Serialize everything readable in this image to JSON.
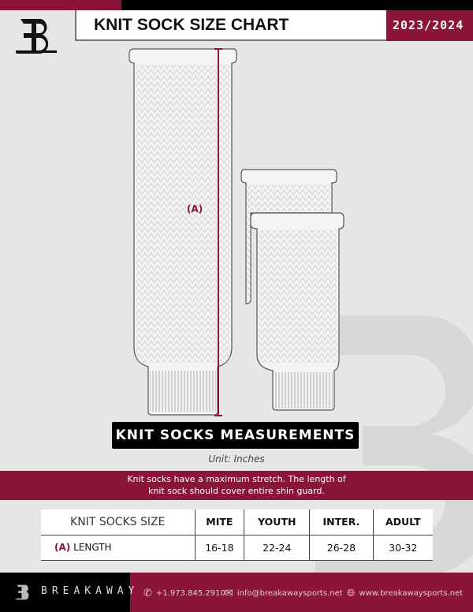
{
  "header": {
    "title": "KNIT SOCK SIZE CHART",
    "season": "2023/2024"
  },
  "diagram": {
    "measure_marker": "(A)"
  },
  "label": "KNIT SOCKS MEASUREMENTS",
  "unit": "Unit: Inches",
  "note": "Knit socks have a maximum stretch. The length of knit sock should cover entire shin guard.",
  "table": {
    "header": [
      "KNIT SOCKS SIZE",
      "MITE",
      "YOUTH",
      "INTER.",
      "ADULT"
    ],
    "rows": [
      {
        "marker": "(A)",
        "label": "LENGTH",
        "values": [
          "16-18",
          "22-24",
          "26-28",
          "30-32"
        ]
      }
    ]
  },
  "footer": {
    "brand": "BREAKAWAY",
    "phone": "+1.973.845.2910",
    "email": "info@breakawaysports.net",
    "website": "www.breakawaysports.net"
  },
  "colors": {
    "accent": "#8a1538",
    "background": "#e5e6e5"
  }
}
